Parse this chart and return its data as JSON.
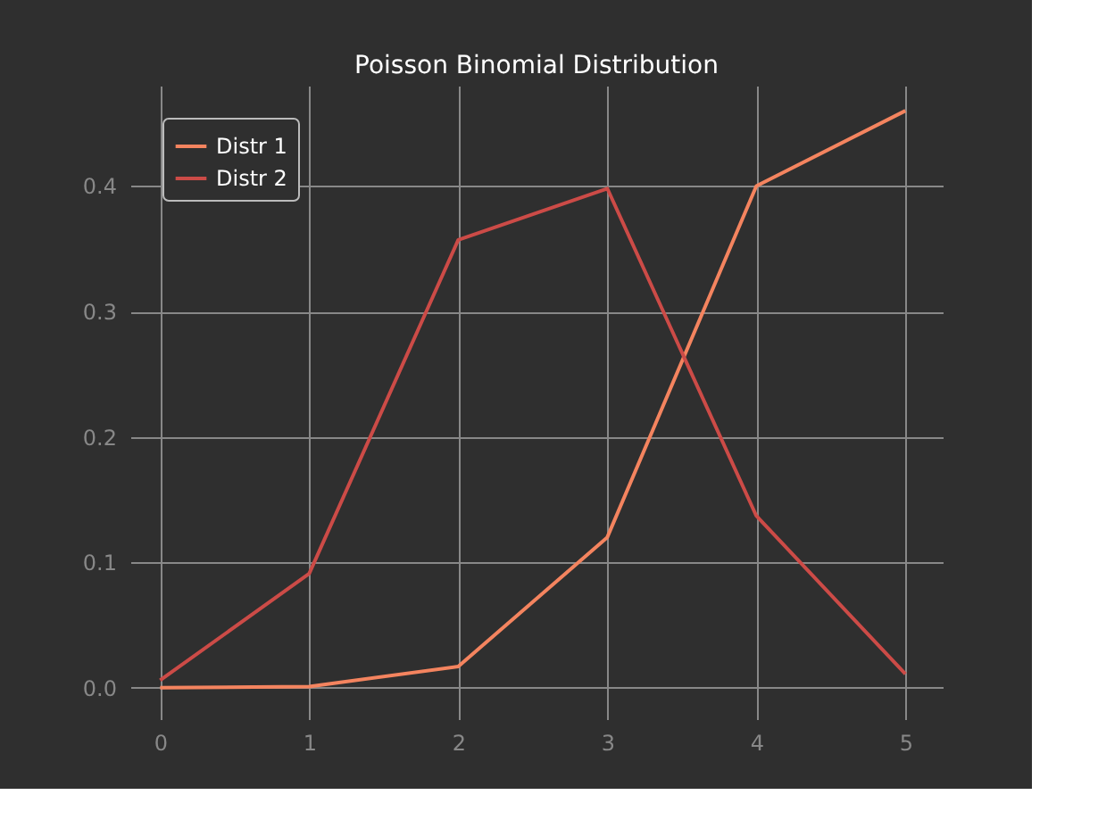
{
  "chart_data": {
    "type": "line",
    "title": "Poisson Binomial Distribution",
    "x": [
      0,
      1,
      2,
      3,
      4,
      5
    ],
    "series": [
      {
        "name": "Distr 1",
        "color": "#f4845f",
        "values": [
          0.0,
          0.001,
          0.017,
          0.12,
          0.4,
          0.46
        ]
      },
      {
        "name": "Distr 2",
        "color": "#cc4b47",
        "values": [
          0.006,
          0.091,
          0.357,
          0.398,
          0.137,
          0.011
        ]
      }
    ],
    "xlim": [
      -0.2,
      5.25
    ],
    "xticks": [
      0,
      1,
      2,
      3,
      4,
      5
    ],
    "ylim": [
      -0.025,
      0.48
    ],
    "yticks": [
      {
        "value": 0,
        "label": "0.0"
      },
      0.1,
      0.2,
      0.3,
      0.4
    ],
    "grid": true,
    "legend": "top left",
    "marker": "none",
    "line_style": "solid"
  }
}
